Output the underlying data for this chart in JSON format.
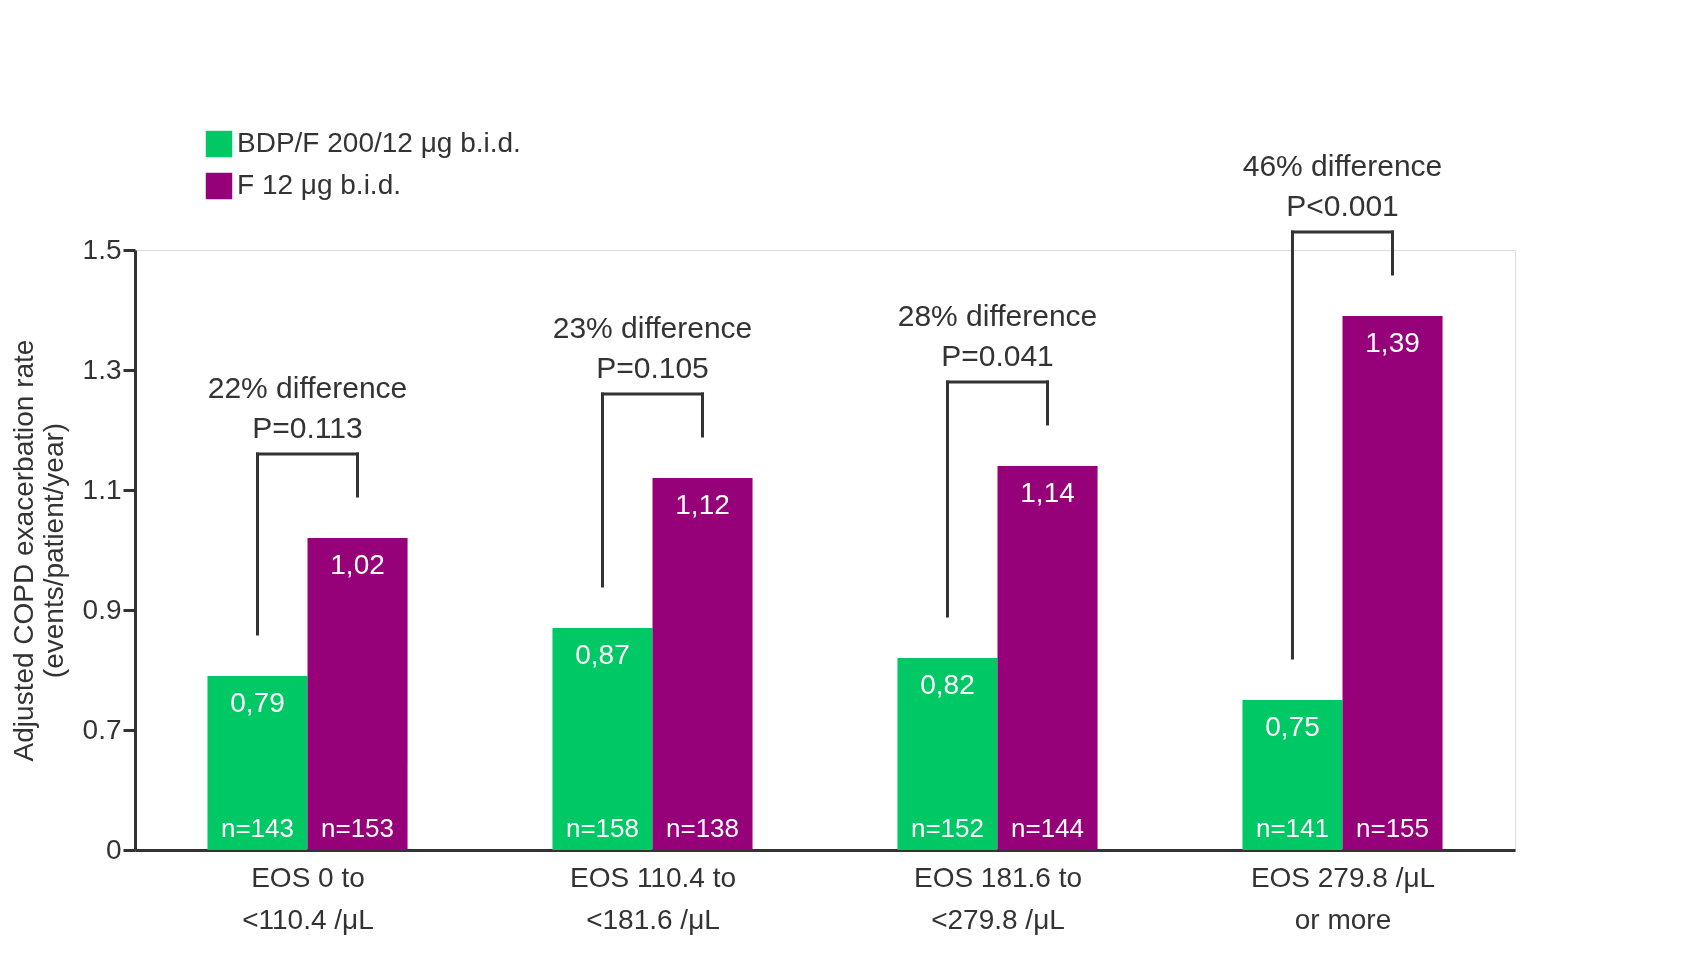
{
  "chart_data": {
    "type": "bar",
    "ylabel": "Adjusted COPD exacerbation rate (events/patient/year)",
    "categories": [
      "EOS 0 to <110.4 /μL",
      "EOS 110.4 to <181.6 /μL",
      "EOS 181.6 to <279.8 /μL",
      "EOS 279.8 /μL or more"
    ],
    "series": [
      {
        "name": "BDP/F 200/12 μg b.i.d.",
        "color": "#00c864",
        "values": [
          0.79,
          0.87,
          0.82,
          0.75
        ],
        "value_labels": [
          "0,79",
          "0,87",
          "0,82",
          "0,75"
        ]
      },
      {
        "name": "F 12 μg b.i.d.",
        "color": "#960078",
        "values": [
          1.02,
          1.12,
          1.14,
          1.39
        ],
        "value_labels": [
          "1,02",
          "1,12",
          "1,14",
          "1,39"
        ]
      }
    ],
    "ylim": [
      0.5,
      1.5
    ],
    "yticks": [
      {
        "value": 0.5,
        "label": "0"
      },
      0.7,
      0.9,
      1.1,
      1.3,
      1.5
    ],
    "grid": false,
    "legend": "top left",
    "annotations": [
      "22% difference\nP=0.113",
      "n=143",
      "n=153",
      "23% difference\nP=0.105",
      "n=158",
      "n=138",
      "28% difference\nP=0.041",
      "n=152",
      "n=144",
      "46% difference\nP<0.001",
      "n=141",
      "n=155"
    ]
  }
}
